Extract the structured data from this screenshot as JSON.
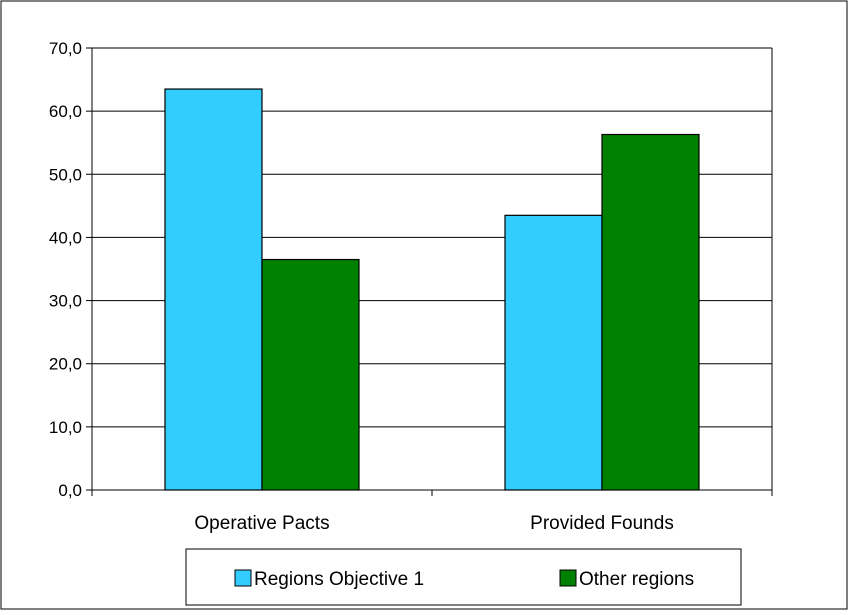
{
  "chart_data": {
    "type": "bar",
    "categories": [
      "Operative Pacts",
      "Provided Founds"
    ],
    "series": [
      {
        "name": "Regions Objective 1",
        "values": [
          63.5,
          43.5
        ],
        "color": "#33CCFF"
      },
      {
        "name": "Other regions",
        "values": [
          36.5,
          56.3
        ],
        "color": "#008000"
      }
    ],
    "ylim": [
      0,
      70
    ],
    "yticks": [
      "0,0",
      "10,0",
      "20,0",
      "30,0",
      "40,0",
      "50,0",
      "60,0",
      "70,0"
    ],
    "grid": true,
    "legend_position": "bottom"
  }
}
